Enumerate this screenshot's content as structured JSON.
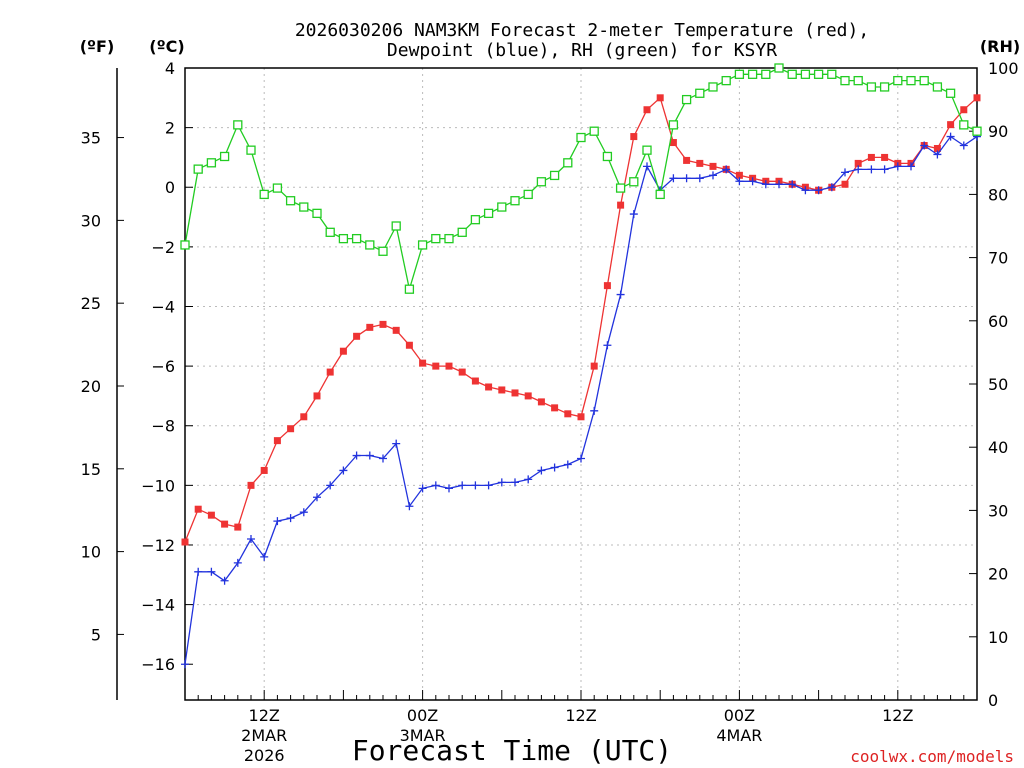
{
  "chart_data": {
    "type": "line",
    "title_line1": "2026030206 NAM3KM Forecast 2-meter Temperature (red),",
    "title_line2": "Dewpoint (blue), RH (green) for KSYR",
    "xlabel": "Forecast Time (UTC)",
    "watermark": "coolwx.com/models",
    "left_outer_axis": {
      "unit_label": "(ºF)",
      "ticks": [
        "5",
        "10",
        "15",
        "20",
        "25",
        "30",
        "35"
      ],
      "tick_values": [
        5,
        10,
        15,
        20,
        25,
        30,
        35
      ]
    },
    "left_axis": {
      "unit_label": "(ºC)",
      "ylim": [
        -17.2,
        4
      ],
      "ticks": [
        "−16",
        "−14",
        "−12",
        "−10",
        "−8",
        "−6",
        "−4",
        "−2",
        "0",
        "2",
        "4"
      ],
      "tick_values": [
        -16,
        -14,
        -12,
        -10,
        -8,
        -6,
        -4,
        -2,
        0,
        2,
        4
      ]
    },
    "right_axis": {
      "unit_label": "(RH)",
      "ylim": [
        0,
        100
      ],
      "ticks": [
        "0",
        "10",
        "20",
        "30",
        "40",
        "50",
        "60",
        "70",
        "80",
        "90",
        "100"
      ],
      "tick_values": [
        0,
        10,
        20,
        30,
        40,
        50,
        60,
        70,
        80,
        90,
        100
      ]
    },
    "x_axis": {
      "xlim_hours": [
        0,
        60
      ],
      "major_ticks": [
        {
          "hour": 6,
          "line1": "12Z",
          "line2": "2MAR",
          "line3": "2026"
        },
        {
          "hour": 18,
          "line1": "00Z",
          "line2": "3MAR",
          "line3": ""
        },
        {
          "hour": 30,
          "line1": "12Z",
          "line2": "",
          "line3": ""
        },
        {
          "hour": 42,
          "line1": "00Z",
          "line2": "4MAR",
          "line3": ""
        },
        {
          "hour": 54,
          "line1": "12Z",
          "line2": "",
          "line3": ""
        }
      ]
    },
    "grid": true,
    "series": [
      {
        "name": "Temperature",
        "color": "#ee3333",
        "marker": "filled-square",
        "x": [
          0,
          1,
          2,
          3,
          4,
          5,
          6,
          7,
          8,
          9,
          10,
          11,
          12,
          13,
          14,
          15,
          16,
          17,
          18,
          19,
          20,
          21,
          22,
          23,
          24,
          25,
          26,
          27,
          28,
          29,
          30,
          31,
          32,
          33,
          34,
          35,
          36,
          37,
          38,
          39,
          40,
          41,
          42,
          43,
          44,
          45,
          46,
          47,
          48,
          49,
          50,
          51,
          52,
          53,
          54,
          55,
          56,
          57,
          58,
          59,
          60
        ],
        "values": [
          -11.9,
          -10.8,
          -11.0,
          -11.3,
          -11.4,
          -10.0,
          -9.5,
          -8.5,
          -8.1,
          -7.7,
          -7.0,
          -6.2,
          -5.5,
          -5.0,
          -4.7,
          -4.6,
          -4.8,
          -5.3,
          -5.9,
          -6.0,
          -6.0,
          -6.2,
          -6.5,
          -6.7,
          -6.8,
          -6.9,
          -7.0,
          -7.2,
          -7.4,
          -7.6,
          -7.7,
          -6.0,
          -3.3,
          -0.6,
          1.7,
          2.6,
          3.0,
          1.5,
          0.9,
          0.8,
          0.7,
          0.6,
          0.4,
          0.3,
          0.2,
          0.2,
          0.1,
          0.0,
          -0.1,
          0.0,
          0.1,
          0.8,
          1.0,
          1.0,
          0.8,
          0.8,
          1.4,
          1.3,
          2.1,
          2.6,
          3.0
        ]
      },
      {
        "name": "Dewpoint",
        "color": "#2233dd",
        "marker": "plus",
        "x": [
          0,
          1,
          2,
          3,
          4,
          5,
          6,
          7,
          8,
          9,
          10,
          11,
          12,
          13,
          14,
          15,
          16,
          17,
          18,
          19,
          20,
          21,
          22,
          23,
          24,
          25,
          26,
          27,
          28,
          29,
          30,
          31,
          32,
          33,
          34,
          35,
          36,
          37,
          38,
          39,
          40,
          41,
          42,
          43,
          44,
          45,
          46,
          47,
          48,
          49,
          50,
          51,
          52,
          53,
          54,
          55,
          56,
          57,
          58,
          59,
          60
        ],
        "values": [
          -16.0,
          -12.9,
          -12.9,
          -13.2,
          -12.6,
          -11.8,
          -12.4,
          -11.2,
          -11.1,
          -10.9,
          -10.4,
          -10.0,
          -9.5,
          -9.0,
          -9.0,
          -9.1,
          -8.6,
          -10.7,
          -10.1,
          -10.0,
          -10.1,
          -10.0,
          -10.0,
          -10.0,
          -9.9,
          -9.9,
          -9.8,
          -9.5,
          -9.4,
          -9.3,
          -9.1,
          -7.5,
          -5.3,
          -3.6,
          -0.9,
          0.7,
          -0.1,
          0.3,
          0.3,
          0.3,
          0.4,
          0.6,
          0.2,
          0.2,
          0.1,
          0.1,
          0.1,
          -0.1,
          -0.1,
          0.0,
          0.5,
          0.6,
          0.6,
          0.6,
          0.7,
          0.7,
          1.4,
          1.1,
          1.7,
          1.4,
          1.7
        ]
      },
      {
        "name": "RH",
        "color": "#22cc22",
        "marker": "open-square",
        "x": [
          0,
          1,
          2,
          3,
          4,
          5,
          6,
          7,
          8,
          9,
          10,
          11,
          12,
          13,
          14,
          15,
          16,
          17,
          18,
          19,
          20,
          21,
          22,
          23,
          24,
          25,
          26,
          27,
          28,
          29,
          30,
          31,
          32,
          33,
          34,
          35,
          36,
          37,
          38,
          39,
          40,
          41,
          42,
          43,
          44,
          45,
          46,
          47,
          48,
          49,
          50,
          51,
          52,
          53,
          54,
          55,
          56,
          57,
          58,
          59,
          60
        ],
        "values": [
          72,
          84,
          85,
          86,
          91,
          87,
          80,
          81,
          79,
          78,
          77,
          74,
          73,
          73,
          72,
          71,
          75,
          65,
          72,
          73,
          73,
          74,
          76,
          77,
          78,
          79,
          80,
          82,
          83,
          85,
          89,
          90,
          86,
          81,
          82,
          87,
          80,
          91,
          95,
          96,
          97,
          98,
          99,
          99,
          99,
          100,
          99,
          99,
          99,
          99,
          98,
          98,
          97,
          97,
          98,
          98,
          98,
          97,
          96,
          91,
          90
        ]
      }
    ]
  }
}
